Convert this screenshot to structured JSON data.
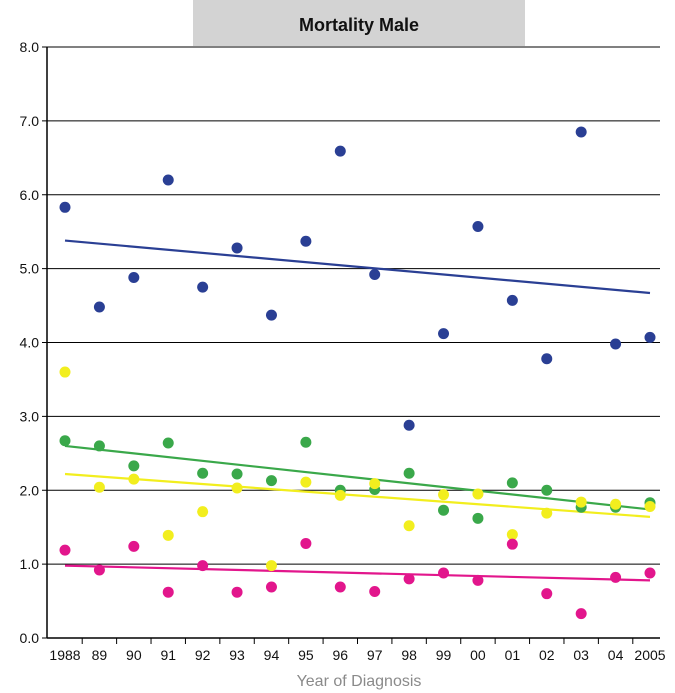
{
  "chart_data": {
    "type": "scatter",
    "title": "Mortality Male",
    "xlabel": "Year of Diagnosis",
    "ylabel": "",
    "ylim": [
      0,
      8
    ],
    "yticks": [
      "0.0",
      "1.0",
      "2.0",
      "3.0",
      "4.0",
      "5.0",
      "6.0",
      "7.0",
      "8.0"
    ],
    "categories": [
      "1988",
      "89",
      "90",
      "91",
      "92",
      "93",
      "94",
      "95",
      "96",
      "97",
      "98",
      "99",
      "00",
      "01",
      "02",
      "03",
      "04",
      "2005"
    ],
    "grid": true,
    "title_box_color": "#d3d3d3",
    "series": [
      {
        "color": "#2a3f94",
        "values": [
          5.83,
          4.48,
          4.88,
          6.2,
          4.75,
          5.28,
          4.37,
          5.37,
          6.59,
          4.92,
          2.88,
          4.12,
          5.57,
          4.57,
          3.78,
          6.85,
          3.98,
          4.07
        ],
        "trend": [
          5.38,
          4.67
        ]
      },
      {
        "color": "#3aa84a",
        "values": [
          2.67,
          2.6,
          2.33,
          2.64,
          2.23,
          2.22,
          2.13,
          2.65,
          2.0,
          2.01,
          2.23,
          1.73,
          1.62,
          2.1,
          2.0,
          1.77,
          1.77,
          1.83
        ],
        "trend": [
          2.6,
          1.74
        ]
      },
      {
        "color": "#f2ee1e",
        "values": [
          3.6,
          2.04,
          2.15,
          1.39,
          1.71,
          2.03,
          0.98,
          2.11,
          1.93,
          2.09,
          1.52,
          1.94,
          1.95,
          1.4,
          1.69,
          1.84,
          1.81,
          1.78
        ],
        "trend": [
          2.22,
          1.64
        ]
      },
      {
        "color": "#e2168c",
        "values": [
          1.19,
          0.92,
          1.24,
          0.62,
          0.98,
          0.62,
          0.69,
          1.28,
          0.69,
          0.63,
          0.8,
          0.88,
          0.78,
          1.27,
          0.6,
          0.33,
          0.82,
          0.88
        ],
        "trend": [
          0.98,
          0.78
        ]
      }
    ]
  }
}
